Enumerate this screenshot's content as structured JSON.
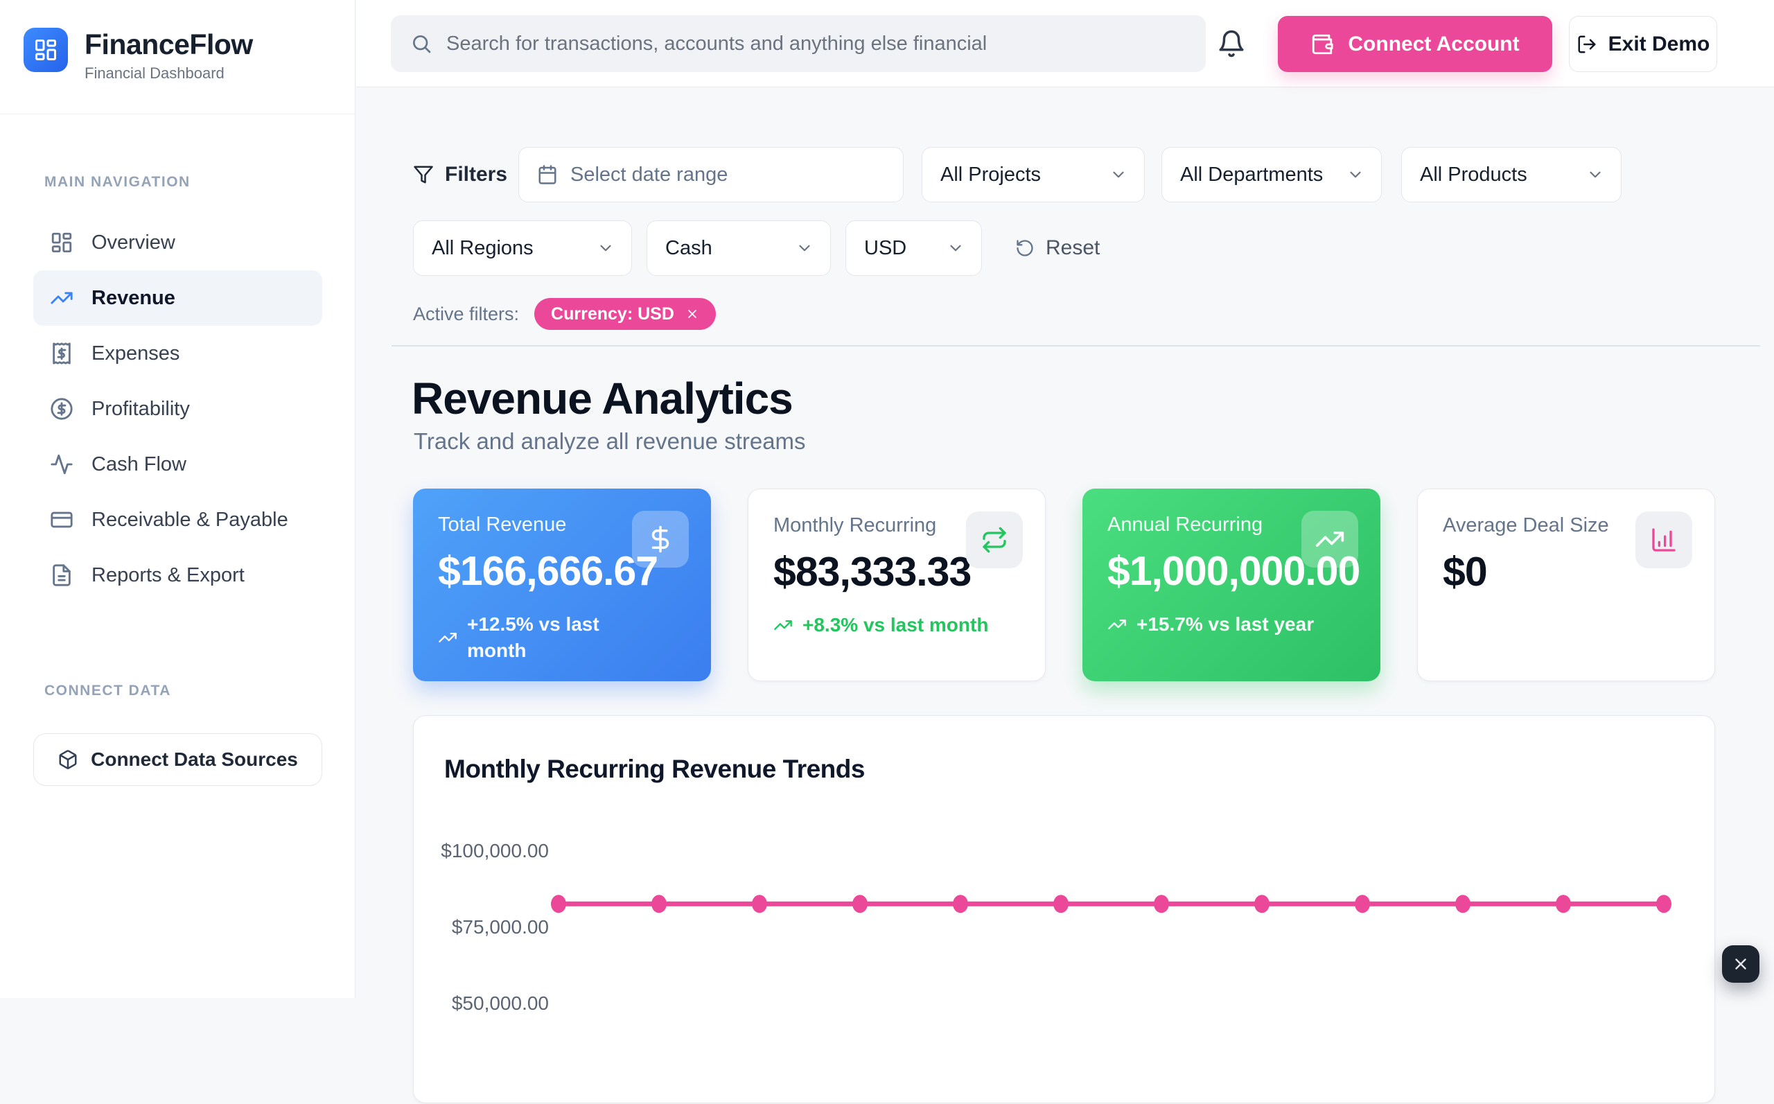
{
  "brand": {
    "name": "FinanceFlow",
    "tagline": "Financial Dashboard"
  },
  "topbar": {
    "search_placeholder": "Search for transactions, accounts and anything else financial",
    "connect_account": "Connect Account",
    "exit_demo": "Exit Demo"
  },
  "sidebar": {
    "section_main": "MAIN NAVIGATION",
    "items": [
      {
        "label": "Overview",
        "icon": "dashboard-icon",
        "active": false
      },
      {
        "label": "Revenue",
        "icon": "trending-up-icon",
        "active": true
      },
      {
        "label": "Expenses",
        "icon": "receipt-icon",
        "active": false
      },
      {
        "label": "Profitability",
        "icon": "circle-dollar-icon",
        "active": false
      },
      {
        "label": "Cash Flow",
        "icon": "activity-icon",
        "active": false
      },
      {
        "label": "Receivable & Payable",
        "icon": "credit-card-icon",
        "active": false
      },
      {
        "label": "Reports & Export",
        "icon": "file-text-icon",
        "active": false
      }
    ],
    "section_connect": "CONNECT DATA",
    "connect_button": "Connect Data Sources"
  },
  "filters": {
    "label": "Filters",
    "date_placeholder": "Select date range",
    "projects": "All Projects",
    "departments": "All Departments",
    "products": "All Products",
    "regions": "All Regions",
    "payment_method": "Cash",
    "currency": "USD",
    "reset": "Reset",
    "active_label": "Active filters:",
    "chip": "Currency: USD"
  },
  "page": {
    "title": "Revenue Analytics",
    "subtitle": "Track and analyze all revenue streams"
  },
  "stats": [
    {
      "label": "Total Revenue",
      "value": "$166,666.67",
      "change": "+12.5% vs last month",
      "icon": "dollar-icon",
      "variant": "blue"
    },
    {
      "label": "Monthly Recurring",
      "value": "$83,333.33",
      "change": "+8.3% vs last month",
      "icon": "repeat-icon",
      "variant": "white"
    },
    {
      "label": "Annual Recurring",
      "value": "$1,000,000.00",
      "change": "+15.7% vs last year",
      "icon": "trending-up-icon",
      "variant": "green"
    },
    {
      "label": "Average Deal Size",
      "value": "$0",
      "change": "",
      "icon": "chart-column-icon",
      "variant": "white"
    }
  ],
  "chart_data": {
    "type": "line",
    "title": "Monthly Recurring Revenue Trends",
    "series": [
      {
        "name": "Monthly Recurring",
        "values": [
          83333.33,
          83333.33,
          83333.33,
          83333.33,
          83333.33,
          83333.33,
          83333.33,
          83333.33,
          83333.33,
          83333.33,
          83333.33,
          83333.33
        ]
      }
    ],
    "num_points": 12,
    "yticks": [
      "$100,000.00",
      "$75,000.00",
      "$50,000.00"
    ],
    "ytick_values": [
      100000,
      75000,
      50000
    ],
    "ylim": [
      50000,
      100000
    ],
    "grid": false,
    "legend": "none",
    "line_color": "#ec4899",
    "x_axis_labels_visible": false
  },
  "colors": {
    "accent_pink": "#ec4899",
    "positive_green": "#22c55e",
    "primary_blue": "#3b82f6",
    "blue_card_gradient": [
      "#4fa2f8",
      "#3b7ef0"
    ],
    "green_card_gradient": [
      "#4ade80",
      "#2ec065"
    ]
  },
  "floating_widget": {
    "close": "×"
  }
}
